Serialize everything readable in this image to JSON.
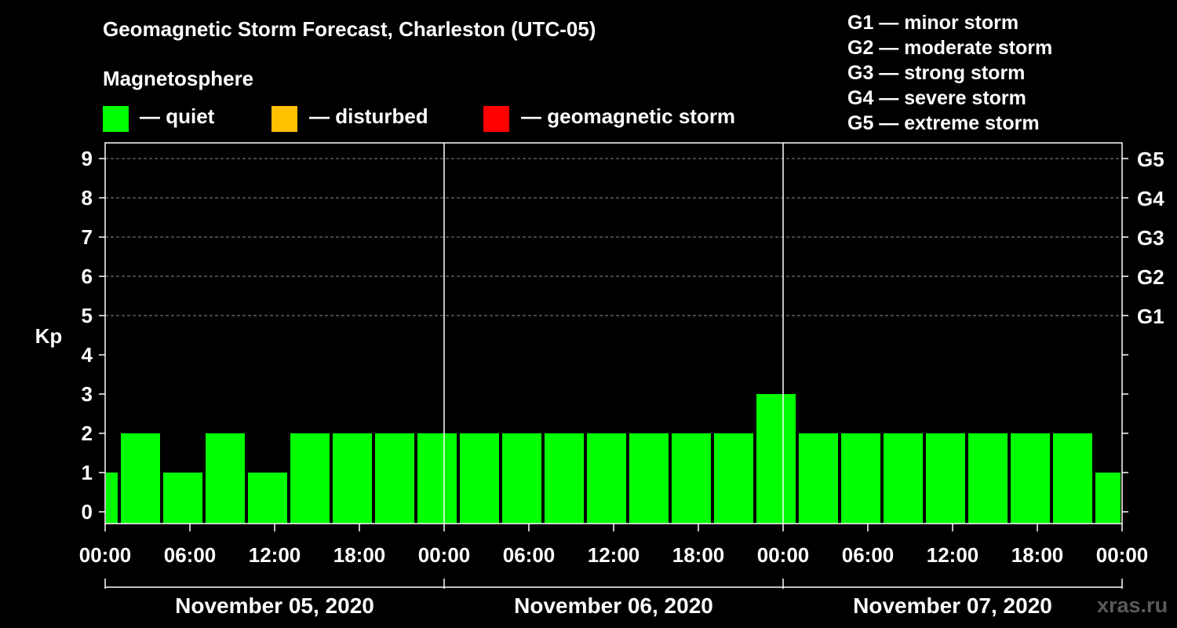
{
  "title": "Geomagnetic Storm Forecast, Charleston (UTC-05)",
  "subtitle": "Magnetosphere",
  "legend": [
    {
      "label": "— quiet",
      "color": "#00ff00"
    },
    {
      "label": "— disturbed",
      "color": "#ffc000"
    },
    {
      "label": "— geomagnetic storm",
      "color": "#ff0000"
    }
  ],
  "g_scale": [
    "G1 — minor storm",
    "G2 — moderate storm",
    "G3 — strong storm",
    "G4 — severe storm",
    "G5 — extreme storm"
  ],
  "watermark": "xras.ru",
  "chart_data": {
    "type": "bar",
    "ylabel": "Kp",
    "ylim": [
      0,
      9
    ],
    "yticks": [
      0,
      1,
      2,
      3,
      4,
      5,
      6,
      7,
      8,
      9
    ],
    "right_ticks": [
      {
        "value": 5,
        "label": "G1"
      },
      {
        "value": 6,
        "label": "G2"
      },
      {
        "value": 7,
        "label": "G3"
      },
      {
        "value": 8,
        "label": "G4"
      },
      {
        "value": 9,
        "label": "G5"
      }
    ],
    "x_range_hours": [
      0,
      72
    ],
    "xtick_labels": [
      "00:00",
      "06:00",
      "12:00",
      "18:00",
      "00:00",
      "06:00",
      "12:00",
      "18:00",
      "00:00",
      "06:00",
      "12:00",
      "18:00",
      "00:00"
    ],
    "day_labels": [
      "November 05, 2020",
      "November 06, 2020",
      "November 07, 2020"
    ],
    "bars": [
      {
        "start_hour": 0,
        "end_hour": 1,
        "kp": 1
      },
      {
        "start_hour": 1,
        "end_hour": 4,
        "kp": 2
      },
      {
        "start_hour": 4,
        "end_hour": 7,
        "kp": 1
      },
      {
        "start_hour": 7,
        "end_hour": 10,
        "kp": 2
      },
      {
        "start_hour": 10,
        "end_hour": 13,
        "kp": 1
      },
      {
        "start_hour": 13,
        "end_hour": 16,
        "kp": 2
      },
      {
        "start_hour": 16,
        "end_hour": 19,
        "kp": 2
      },
      {
        "start_hour": 19,
        "end_hour": 22,
        "kp": 2
      },
      {
        "start_hour": 22,
        "end_hour": 25,
        "kp": 2
      },
      {
        "start_hour": 25,
        "end_hour": 28,
        "kp": 2
      },
      {
        "start_hour": 28,
        "end_hour": 31,
        "kp": 2
      },
      {
        "start_hour": 31,
        "end_hour": 34,
        "kp": 2
      },
      {
        "start_hour": 34,
        "end_hour": 37,
        "kp": 2
      },
      {
        "start_hour": 37,
        "end_hour": 40,
        "kp": 2
      },
      {
        "start_hour": 40,
        "end_hour": 43,
        "kp": 2
      },
      {
        "start_hour": 43,
        "end_hour": 46,
        "kp": 2
      },
      {
        "start_hour": 46,
        "end_hour": 49,
        "kp": 3
      },
      {
        "start_hour": 49,
        "end_hour": 52,
        "kp": 2
      },
      {
        "start_hour": 52,
        "end_hour": 55,
        "kp": 2
      },
      {
        "start_hour": 55,
        "end_hour": 58,
        "kp": 2
      },
      {
        "start_hour": 58,
        "end_hour": 61,
        "kp": 2
      },
      {
        "start_hour": 61,
        "end_hour": 64,
        "kp": 2
      },
      {
        "start_hour": 64,
        "end_hour": 67,
        "kp": 2
      },
      {
        "start_hour": 67,
        "end_hour": 70,
        "kp": 2
      },
      {
        "start_hour": 70,
        "end_hour": 72,
        "kp": 1
      }
    ],
    "bar_color": "#00ff00",
    "grid": true
  }
}
